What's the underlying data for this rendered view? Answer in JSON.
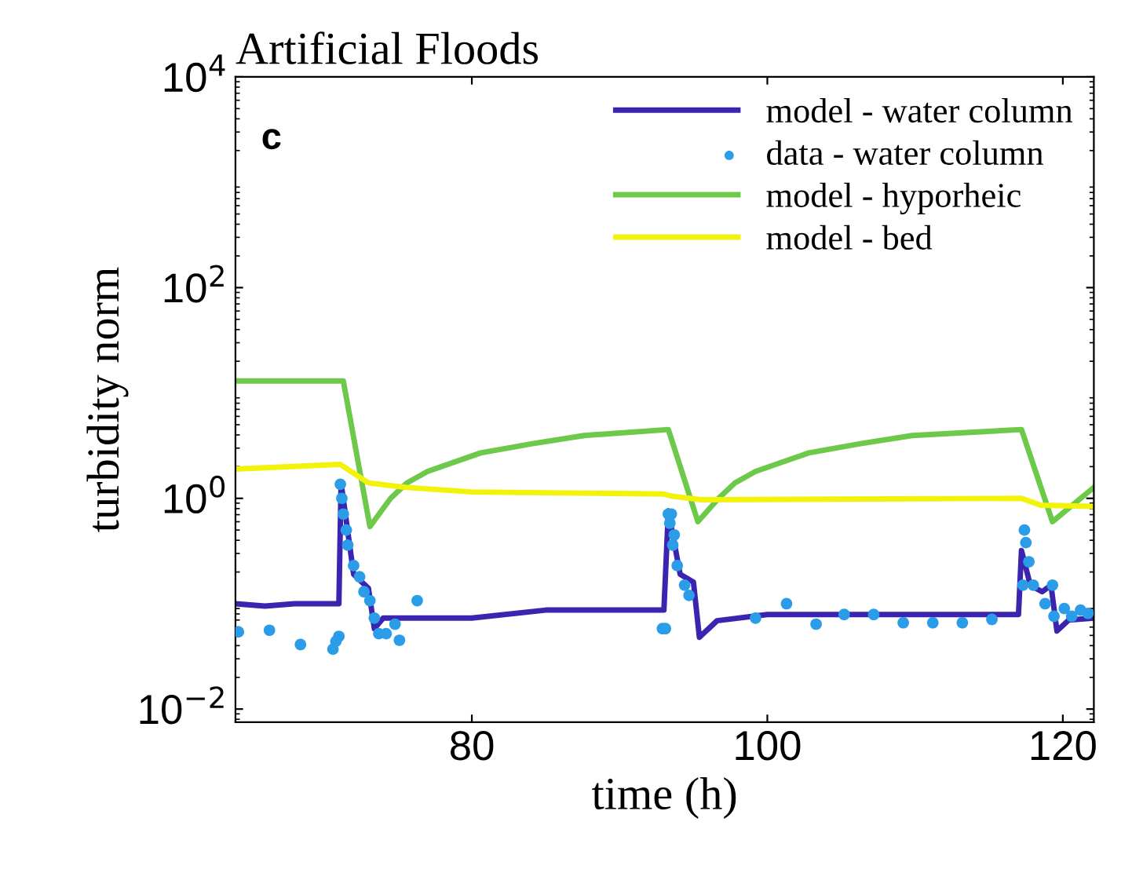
{
  "chart_data": {
    "type": "line",
    "title": "Artificial Floods",
    "xlabel": "time (h)",
    "ylabel": "turbidity norm",
    "annotations": [
      "c"
    ],
    "log": "y",
    "xlim": [
      64,
      122.1
    ],
    "ylim": [
      0.0075,
      10000
    ],
    "xticks": [
      80,
      100,
      120
    ],
    "yticks": [
      {
        "value": 0.01,
        "label": "10$^{−2}$"
      },
      {
        "value": 1,
        "label": "10$^{0}$"
      },
      {
        "value": 100,
        "label": "10$^{2}$"
      },
      {
        "value": 10000,
        "label": "10$^{4}$"
      }
    ],
    "grid": false,
    "legend": "top right",
    "series": [
      {
        "name": "model - water column",
        "color": "#3b24b0",
        "x": [
          64,
          66,
          68,
          70,
          71.0,
          71.15,
          72.0,
          73.0,
          73.4,
          74.0,
          80,
          85,
          93.0,
          93.3,
          94.1,
          95.0,
          95.4,
          96.6,
          100,
          110,
          117.0,
          117.2,
          117.8,
          118.6,
          119.2,
          119.6,
          120.4,
          122.1
        ],
        "values": [
          0.1,
          0.095,
          0.1,
          0.1,
          0.1,
          1.4,
          0.19,
          0.14,
          0.058,
          0.073,
          0.073,
          0.087,
          0.087,
          0.76,
          0.19,
          0.16,
          0.048,
          0.069,
          0.079,
          0.079,
          0.079,
          0.32,
          0.15,
          0.13,
          0.15,
          0.055,
          0.07,
          0.073
        ]
      },
      {
        "name": "data - water column",
        "type": "scatter",
        "marker": "circle",
        "color": "#2b9de8",
        "x": [
          64.2,
          66.3,
          68.4,
          70.6,
          70.8,
          71.0,
          71.1,
          71.2,
          71.3,
          71.5,
          71.6,
          72.0,
          72.4,
          72.7,
          73.1,
          73.4,
          73.7,
          74.2,
          74.8,
          75.1,
          76.3,
          92.9,
          93.1,
          93.3,
          93.4,
          93.5,
          93.6,
          93.7,
          93.9,
          94.4,
          94.7,
          99.2,
          101.3,
          103.3,
          105.2,
          107.2,
          109.2,
          111.2,
          113.2,
          115.2,
          117.3,
          117.4,
          117.5,
          117.7,
          118.0,
          118.8,
          119.3,
          119.4,
          120.1,
          120.6,
          121.2,
          121.7
        ],
        "values": [
          0.054,
          0.056,
          0.041,
          0.037,
          0.044,
          0.049,
          1.36,
          1.0,
          0.71,
          0.5,
          0.36,
          0.23,
          0.18,
          0.13,
          0.107,
          0.073,
          0.052,
          0.052,
          0.064,
          0.045,
          0.107,
          0.058,
          0.058,
          0.71,
          0.58,
          0.71,
          0.36,
          0.45,
          0.23,
          0.15,
          0.12,
          0.073,
          0.1,
          0.064,
          0.079,
          0.079,
          0.066,
          0.066,
          0.066,
          0.071,
          0.15,
          0.5,
          0.38,
          0.25,
          0.15,
          0.1,
          0.15,
          0.076,
          0.09,
          0.076,
          0.087,
          0.081
        ]
      },
      {
        "name": "model - hyporheic",
        "color": "#6cc94a",
        "x": [
          64,
          71.3,
          73.1,
          74.5,
          75.6,
          77.0,
          80.6,
          84.1,
          87.6,
          93.3,
          95.3,
          96.7,
          97.8,
          99.2,
          102.8,
          106.3,
          109.8,
          117.2,
          119.3,
          122.1
        ],
        "values": [
          13,
          13,
          0.54,
          1.0,
          1.4,
          1.8,
          2.7,
          3.3,
          3.95,
          4.5,
          0.6,
          1.0,
          1.4,
          1.8,
          2.7,
          3.3,
          3.95,
          4.5,
          0.6,
          1.27
        ]
      },
      {
        "name": "model - bed",
        "color": "#f2f20a",
        "x": [
          64,
          71.1,
          73.0,
          75.6,
          80,
          93.0,
          93.5,
          95.5,
          117.2,
          118.5,
          122.1
        ],
        "values": [
          1.9,
          2.1,
          1.4,
          1.27,
          1.15,
          1.1,
          1.05,
          0.97,
          1.0,
          0.86,
          0.84
        ]
      }
    ]
  }
}
